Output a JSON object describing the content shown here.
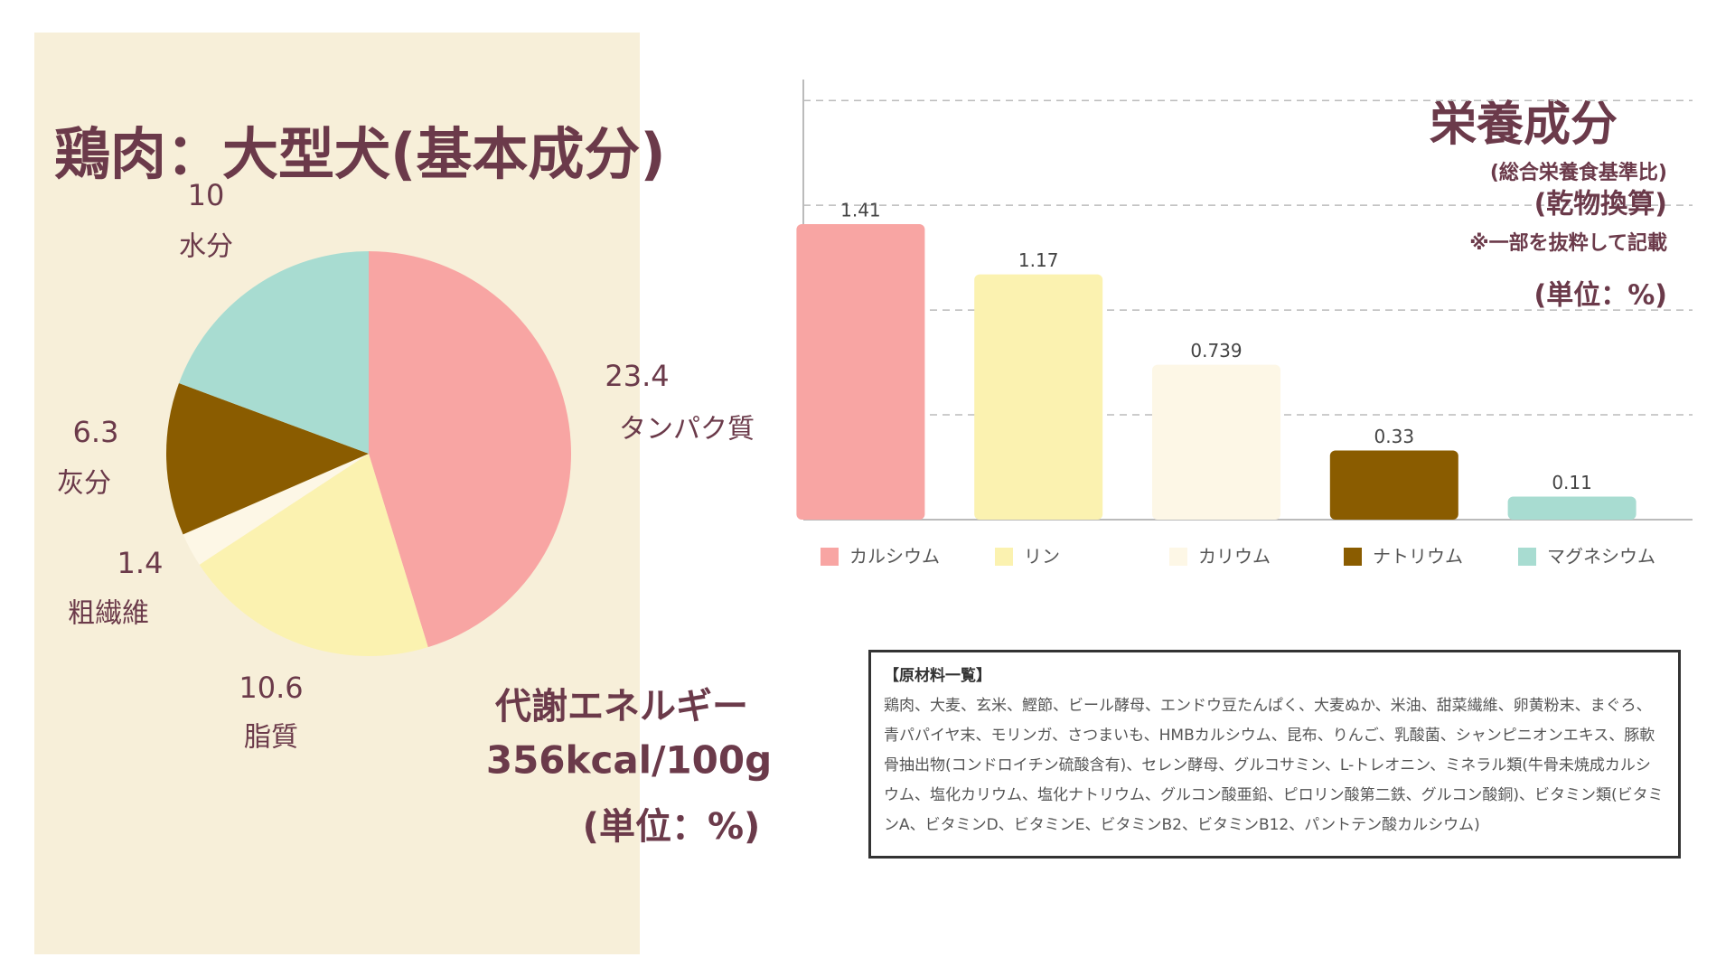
{
  "chart_data": [
    {
      "type": "pie",
      "title": "鶏肉：大型犬(基本成分)",
      "categories": [
        "タンパク質",
        "脂質",
        "粗繊維",
        "灰分",
        "水分"
      ],
      "values": [
        23.4,
        10.6,
        1.4,
        6.3,
        10
      ],
      "colors": [
        "#f8a5a3",
        "#fbf2b0",
        "#fdf7e6",
        "#8a5c00",
        "#a8dcd1"
      ],
      "annotations": [
        "代謝エネルギー",
        "356kcal/100g",
        "(単位：%)"
      ]
    },
    {
      "type": "bar",
      "title": "栄養成分",
      "subtitle": "(総合栄養食基準比)",
      "annotations": [
        "(乾物換算)",
        "※一部を抜粋して記載",
        "(単位：%)"
      ],
      "categories": [
        "カルシウム",
        "リン",
        "カリウム",
        "ナトリウム",
        "マグネシウム"
      ],
      "values": [
        1.41,
        1.17,
        0.739,
        0.33,
        0.11
      ],
      "colors": [
        "#f8a5a3",
        "#fbf2b0",
        "#fdf7e6",
        "#8a5c00",
        "#a8dcd1"
      ],
      "ylim": [
        0,
        2.1
      ],
      "yticks": [
        0.5,
        1,
        1.5,
        2
      ],
      "grid": true
    }
  ],
  "ingredients": {
    "title": "【原材料一覧】",
    "text": "鶏肉、大麦、玄米、鰹節、ビール酵母、エンドウ豆たんぱく、大麦ぬか、米油、甜菜繊維、卵黄粉末、まぐろ、青パパイヤ末、モリンガ、さつまいも、HMBカルシウム、昆布、りんご、乳酸菌、シャンピニオンエキス、豚軟骨抽出物(コンドロイチン硫酸含有)、セレン酵母、グルコサミン、L-トレオニン、ミネラル類(牛骨未焼成カルシウム、塩化カリウム、塩化ナトリウム、グルコン酸亜鉛、ピロリン酸第二鉄、グルコン酸銅)、ビタミン類(ビタミンA、ビタミンD、ビタミンE、ビタミンB2、ビタミンB12、パントテン酸カルシウム)"
  }
}
